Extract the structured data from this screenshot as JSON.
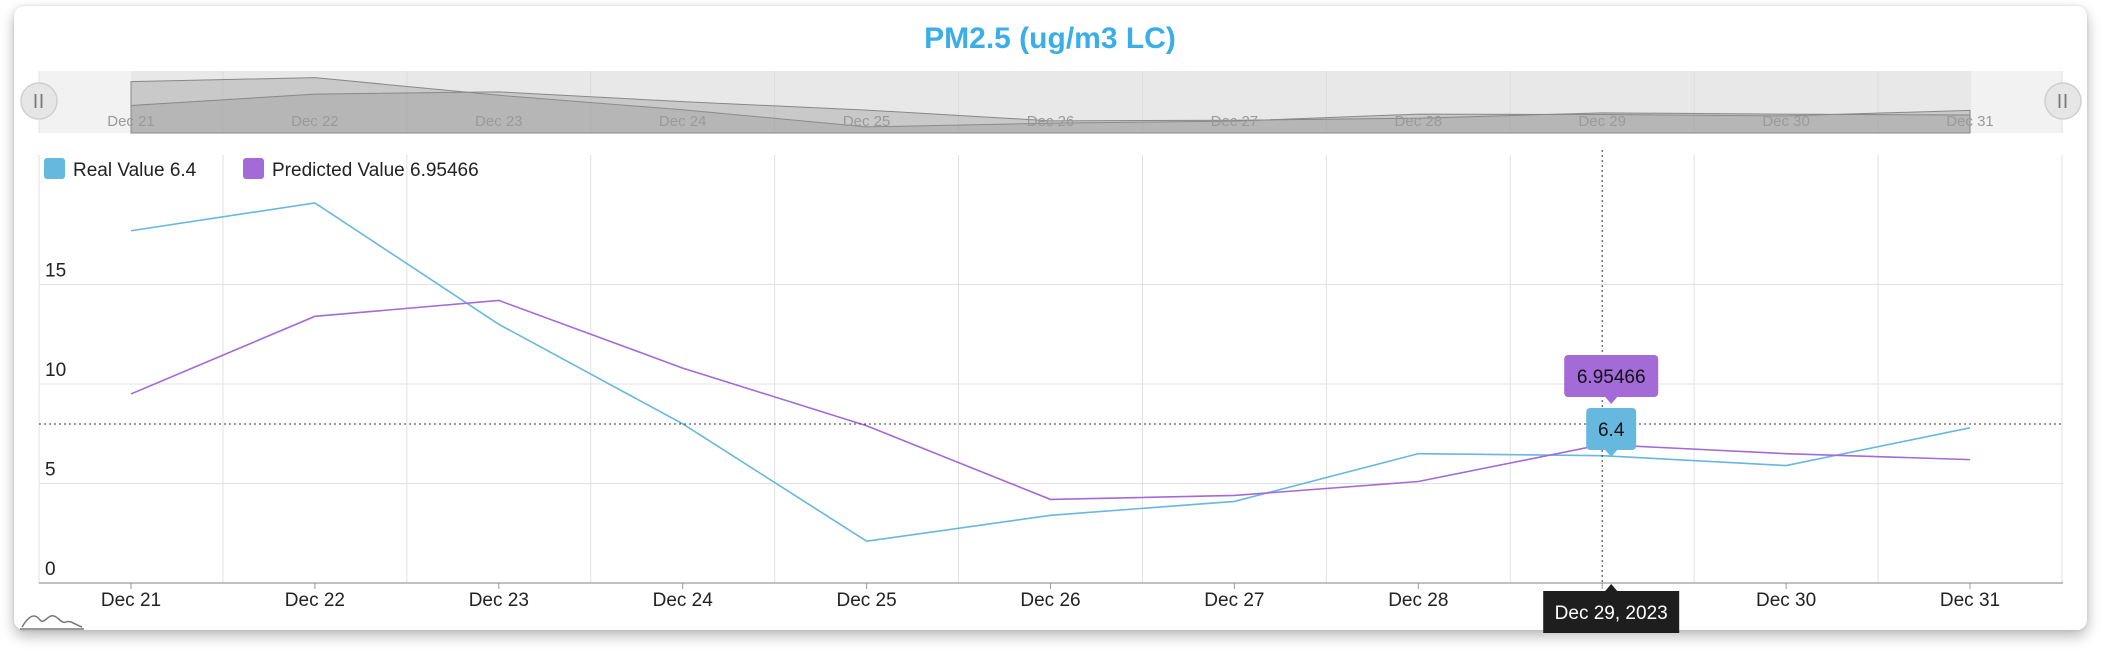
{
  "chart_data": {
    "type": "line",
    "title": "PM2.5 (ug/m3 LC)",
    "categories": [
      "Dec 21",
      "Dec 22",
      "Dec 23",
      "Dec 24",
      "Dec 25",
      "Dec 26",
      "Dec 27",
      "Dec 28",
      "Dec 29",
      "Dec 30",
      "Dec 31"
    ],
    "y_ticks": [
      "0",
      "5",
      "10",
      "15"
    ],
    "ylim": [
      0,
      20
    ],
    "grid": true,
    "legend_position": "top-left",
    "series": [
      {
        "name": "Real Value",
        "legend_label": "Real Value 6.4",
        "color": "#66b8df",
        "values": [
          17.7,
          19.1,
          13.0,
          8.0,
          2.1,
          3.4,
          4.1,
          6.5,
          6.4,
          5.9,
          7.8
        ]
      },
      {
        "name": "Predicted Value",
        "legend_label": "Predicted Value 6.95466",
        "color": "#a36ad8",
        "values": [
          9.5,
          13.4,
          14.2,
          10.8,
          7.9,
          4.2,
          4.4,
          5.1,
          6.95466,
          6.5,
          6.2
        ]
      }
    ],
    "highlight": {
      "index": 8,
      "date_label": "Dec 29, 2023",
      "real_label": "6.4",
      "predicted_label": "6.95466"
    }
  },
  "colors": {
    "title": "#3aaee8",
    "real": "#66b8df",
    "predicted": "#a36ad8",
    "grid": "#e1e1e1",
    "navigator_bg": "#f2f2f2",
    "navigator_fill": "#c8c8c8"
  },
  "icons": {
    "scroll_left": "pause-handle-icon",
    "scroll_right": "pause-handle-icon",
    "navigator_toggle": "mountain-chart-icon"
  }
}
